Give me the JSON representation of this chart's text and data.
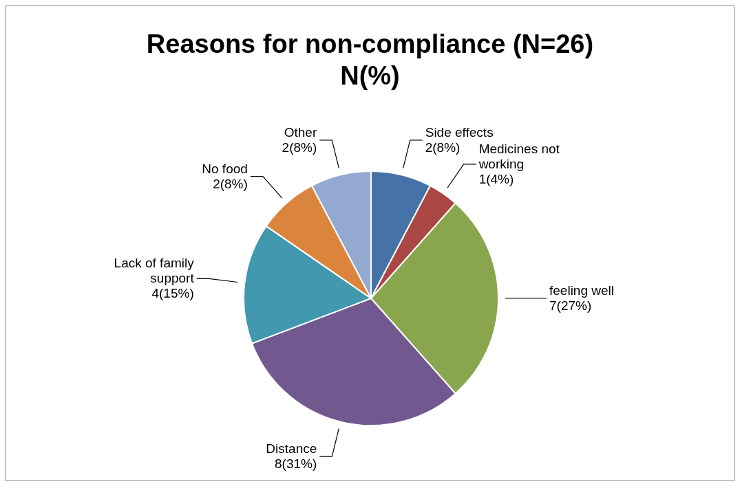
{
  "chart_data": {
    "type": "pie",
    "title": "Reasons for non-compliance (N=26)\nN(%)",
    "categories": [
      "Side effects",
      "Medicines not working",
      "feeling well",
      "Distance",
      "Lack of family support",
      "No food",
      "Other"
    ],
    "values": [
      2,
      1,
      7,
      8,
      4,
      2,
      2
    ],
    "value_labels": [
      "2(8%)",
      "1(4%)",
      "7(27%)",
      "8(31%)",
      "4(15%)",
      "2(8%)",
      "2(8%)"
    ],
    "colors": [
      "#4572a7",
      "#aa4643",
      "#89a54e",
      "#71588f",
      "#4198af",
      "#db843d",
      "#93a9cf"
    ]
  }
}
